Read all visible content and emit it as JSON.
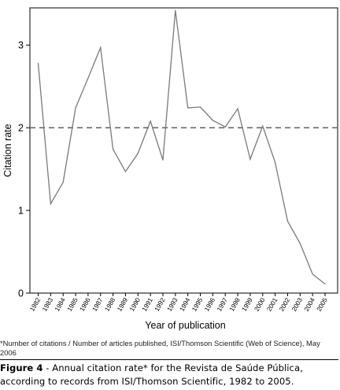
{
  "chart_data": {
    "type": "line",
    "title": "",
    "xlabel": "Year of publication",
    "ylabel": "Citation rate",
    "categories": [
      "1982",
      "1983",
      "1984",
      "1985",
      "1986",
      "1987",
      "1988",
      "1989",
      "1990",
      "1991",
      "1992",
      "1993",
      "1994",
      "1995",
      "1996",
      "1997",
      "1998",
      "1999",
      "2000",
      "2001",
      "2002",
      "2003",
      "2004",
      "2005"
    ],
    "series": [
      {
        "values": [
          2.78,
          1.08,
          1.34,
          2.24,
          2.6,
          2.97,
          1.74,
          1.47,
          1.69,
          2.08,
          1.61,
          3.42,
          2.24,
          2.25,
          2.09,
          2.01,
          2.23,
          1.62,
          2.02,
          1.58,
          0.87,
          0.6,
          0.23,
          0.11
        ],
        "color": "#7a7a7a"
      }
    ],
    "yticks": [
      "0",
      "1",
      "2",
      "3"
    ],
    "ylim": [
      0,
      3.45
    ],
    "reference_line": {
      "y": 2,
      "style": "dashed",
      "color": "#777777"
    },
    "grid": false,
    "legend": "none",
    "axis_color": "#000000"
  },
  "footnote": "*Number of citations / Number of articles published, ISI/Thomson Scientific (Web of Science), May 2006",
  "caption": {
    "label": "Figure 4",
    "text": " - Annual citation rate* for the Revista de Saúde Pública, according to records from ISI/Thomson Scientific, 1982 to 2005."
  }
}
